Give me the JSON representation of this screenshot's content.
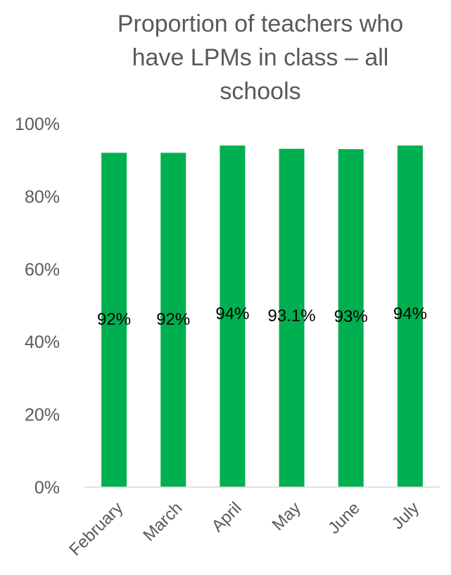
{
  "chart_data": {
    "type": "bar",
    "title_lines": [
      "Proportion of teachers who",
      "have LPMs in class – all",
      "schools"
    ],
    "categories": [
      "February",
      "March",
      "April",
      "May",
      "June",
      "July"
    ],
    "values": [
      92,
      92,
      94,
      93.1,
      93,
      94
    ],
    "data_labels": [
      "92%",
      "92%",
      "94%",
      "93.1%",
      "93%",
      "94%"
    ],
    "ylim": [
      0,
      100
    ],
    "yticks": [
      0,
      20,
      40,
      60,
      80,
      100
    ],
    "ytick_labels": [
      "0%",
      "20%",
      "40%",
      "60%",
      "80%",
      "100%"
    ],
    "xlabel": "",
    "ylabel": "",
    "grid": false,
    "legend": "none",
    "colors": {
      "bar": "#00b050",
      "axis": "#d9d9d9",
      "tick_text": "#595959",
      "label_text": "#000000",
      "title_text": "#595959"
    }
  }
}
